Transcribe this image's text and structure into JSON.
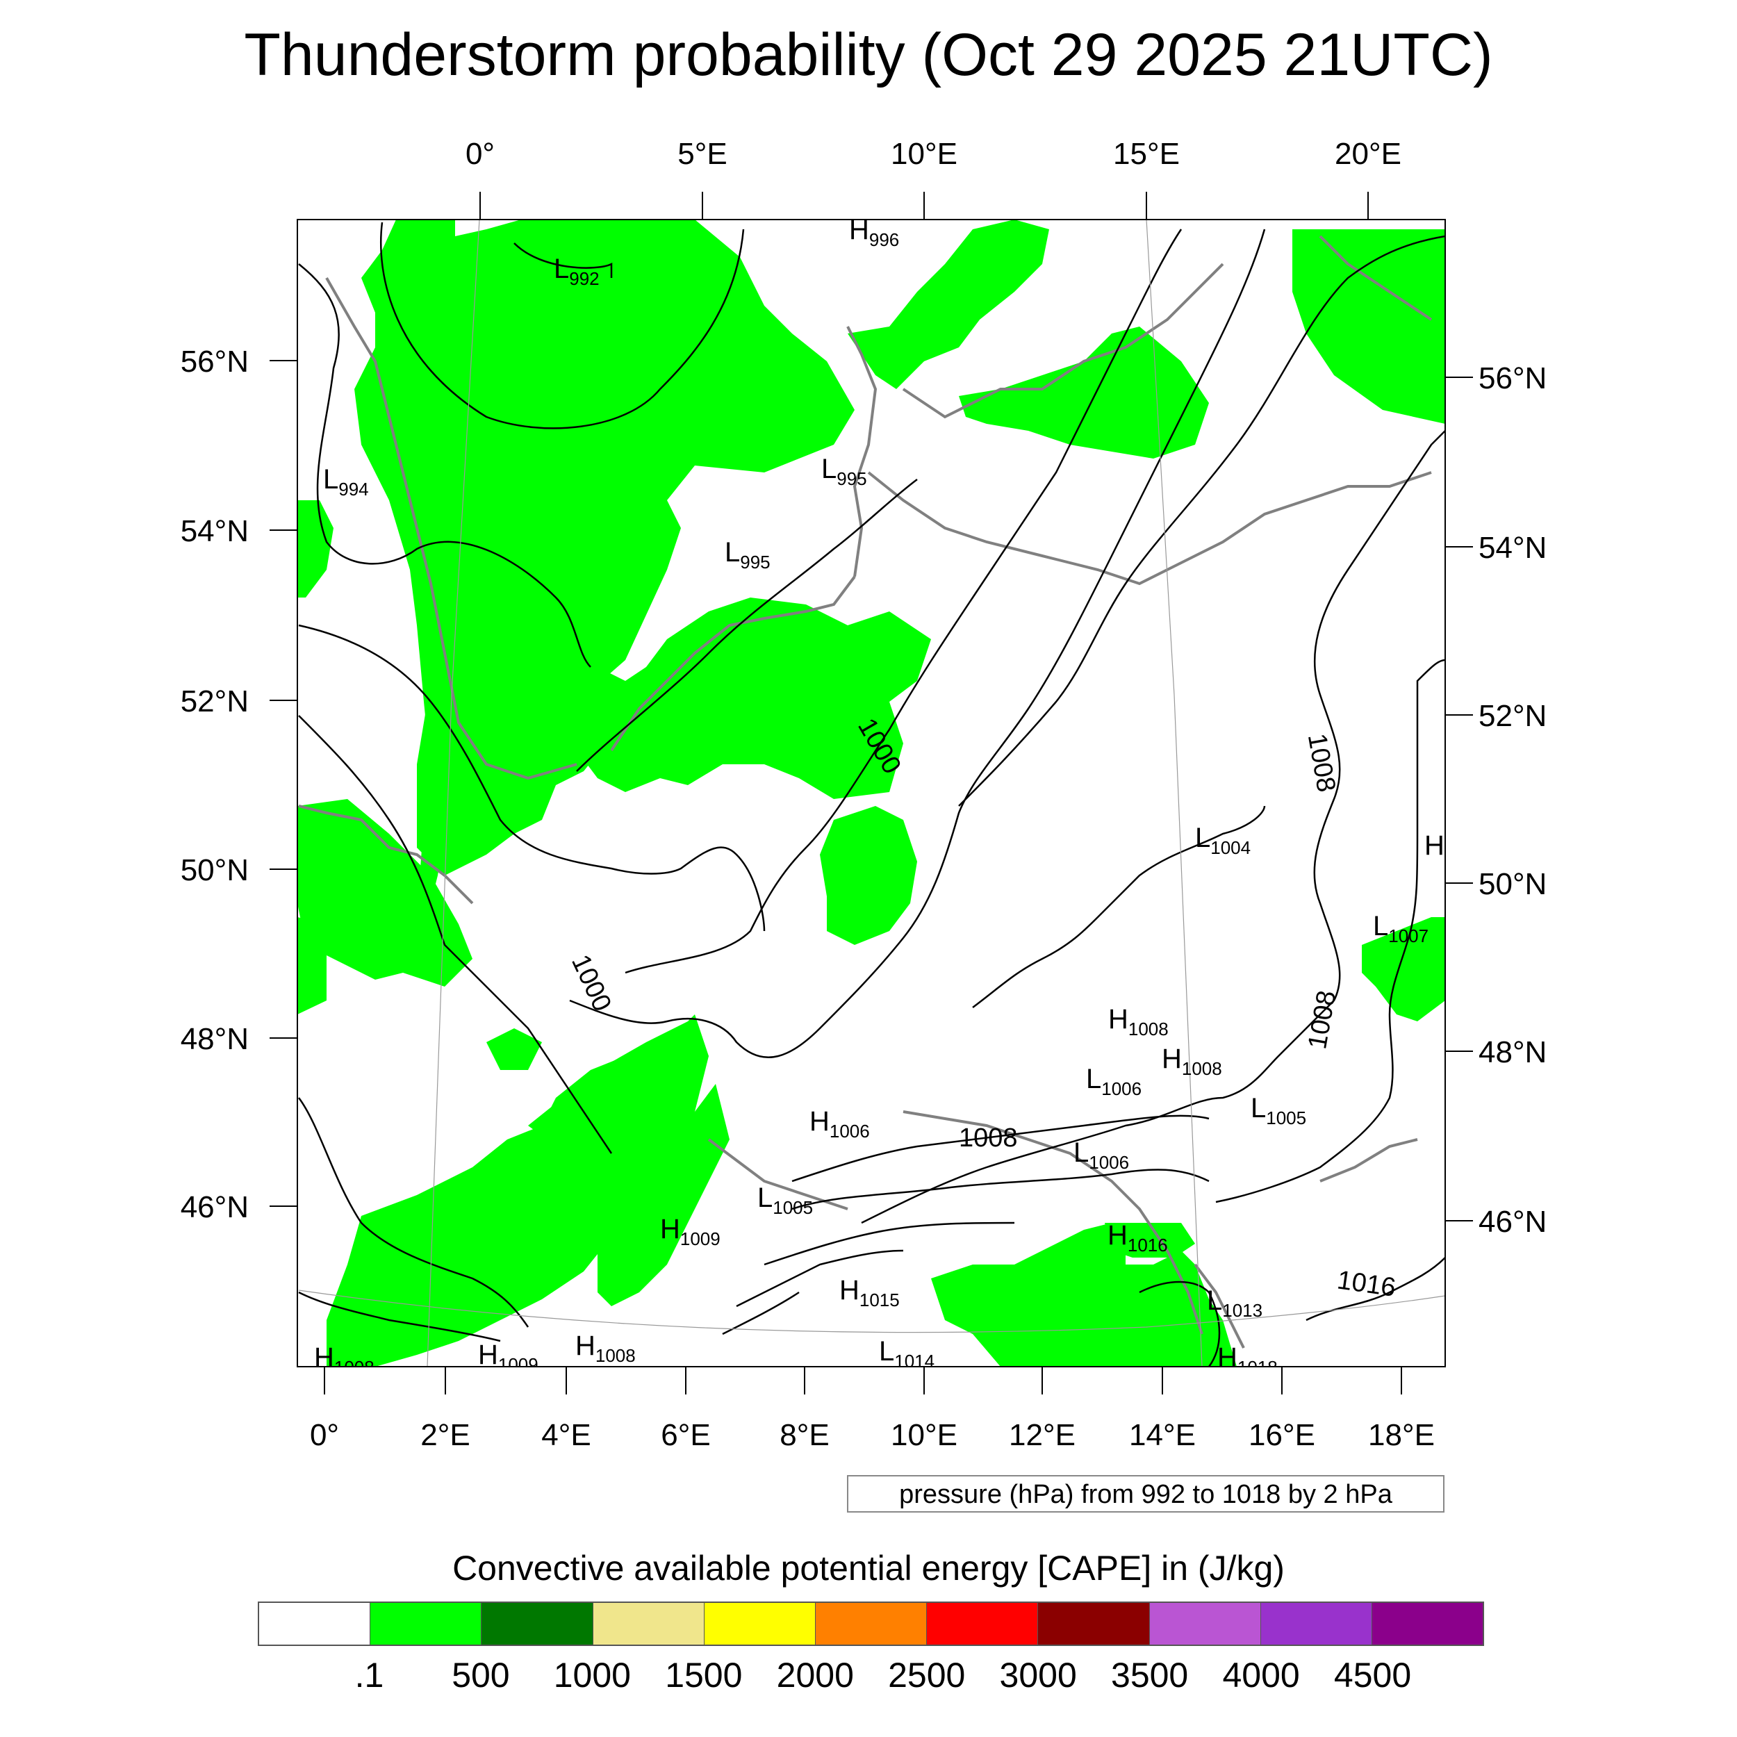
{
  "title": "Thunderstorm probability (Oct 29 2025 21UTC)",
  "map": {
    "top_lon_labels": [
      "0°",
      "5°E",
      "10°E",
      "15°E",
      "20°E"
    ],
    "bottom_lon_labels": [
      "0°",
      "2°E",
      "4°E",
      "6°E",
      "8°E",
      "10°E",
      "12°E",
      "14°E",
      "16°E",
      "18°E"
    ],
    "left_lat_labels": [
      "56°N",
      "54°N",
      "52°N",
      "50°N",
      "48°N",
      "46°N"
    ],
    "right_lat_labels": [
      "56°N",
      "54°N",
      "52°N",
      "50°N",
      "48°N",
      "46°N"
    ],
    "contour_labels": [
      "1000",
      "1000",
      "1008",
      "1008",
      "1008",
      "1016"
    ],
    "pressure_centers": [
      {
        "type": "H",
        "value": "996"
      },
      {
        "type": "L",
        "value": "992"
      },
      {
        "type": "L",
        "value": "994"
      },
      {
        "type": "L",
        "value": "995"
      },
      {
        "type": "L",
        "value": "995"
      },
      {
        "type": "L",
        "value": "1004"
      },
      {
        "type": "H",
        "value": ""
      },
      {
        "type": "L",
        "value": "1007"
      },
      {
        "type": "H",
        "value": "1008"
      },
      {
        "type": "H",
        "value": "1008"
      },
      {
        "type": "L",
        "value": "1006"
      },
      {
        "type": "L",
        "value": "1005"
      },
      {
        "type": "H",
        "value": "1006"
      },
      {
        "type": "L",
        "value": "1006"
      },
      {
        "type": "L",
        "value": "1005"
      },
      {
        "type": "H",
        "value": "1009"
      },
      {
        "type": "H",
        "value": "1016"
      },
      {
        "type": "H",
        "value": "1015"
      },
      {
        "type": "L",
        "value": "1013"
      },
      {
        "type": "H",
        "value": "1009"
      },
      {
        "type": "H",
        "value": "1008"
      },
      {
        "type": "L",
        "value": "1014"
      },
      {
        "type": "H",
        "value": "1018"
      },
      {
        "type": "H",
        "value": "1008"
      }
    ],
    "field_color": "#00FF00",
    "contour_color": "#000000",
    "coastline_color": "#808080"
  },
  "info_box": "pressure (hPa) from 992 to 1018 by 2 hPa",
  "colorbar": {
    "title": "Convective available potential energy [CAPE] in (J/kg)",
    "colors": [
      "#FFFFFF",
      "#00FF00",
      "#007800",
      "#F0E68C",
      "#FFFF00",
      "#FF8000",
      "#FF0000",
      "#8B0000",
      "#BA55D3",
      "#9932CC",
      "#8B008B"
    ],
    "ticks": [
      ".1",
      "500",
      "1000",
      "1500",
      "2000",
      "2500",
      "3000",
      "3500",
      "4000",
      "4500"
    ]
  }
}
